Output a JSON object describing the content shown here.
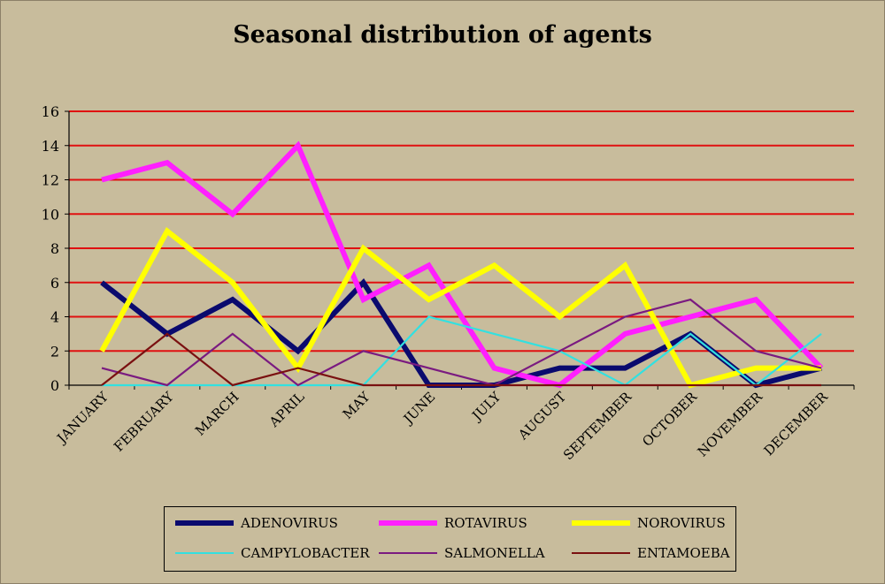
{
  "chart_data": {
    "type": "line",
    "title": "Seasonal distribution of agents",
    "xlabel": "",
    "ylabel": "",
    "categories": [
      "JANUARY",
      "FEBRUARY",
      "MARCH",
      "APRIL",
      "MAY",
      "JUNE",
      "JULY",
      "AUGUST",
      "SEPTEMBER",
      "OCTOBER",
      "NOVEMBER",
      "DECEMBER"
    ],
    "ylim": [
      0,
      16
    ],
    "yticks": [
      0,
      2,
      4,
      6,
      8,
      10,
      12,
      14,
      16
    ],
    "grid": true,
    "grid_color": "#e01010",
    "background_color": "#c8bc9c",
    "legend_position": "bottom",
    "series": [
      {
        "name": "ADENOVIRUS",
        "color": "#0a0a6e",
        "width": "thick",
        "values": [
          6,
          3,
          5,
          2,
          6,
          0,
          0,
          1,
          1,
          3,
          0,
          1
        ]
      },
      {
        "name": "ROTAVIRUS",
        "color": "#ff1fff",
        "width": "thick",
        "values": [
          12,
          13,
          10,
          14,
          5,
          7,
          1,
          0,
          3,
          4,
          5,
          1
        ]
      },
      {
        "name": "NOROVIRUS",
        "color": "#ffff00",
        "width": "thick",
        "values": [
          2,
          9,
          6,
          1,
          8,
          5,
          7,
          4,
          7,
          0,
          1,
          1
        ]
      },
      {
        "name": "CAMPYLOBACTER",
        "color": "#33e0e0",
        "width": "thin",
        "values": [
          0,
          0,
          0,
          0,
          0,
          4,
          3,
          2,
          0,
          3,
          0,
          3
        ]
      },
      {
        "name": "SALMONELLA",
        "color": "#7a1a80",
        "width": "thin",
        "values": [
          1,
          0,
          3,
          0,
          2,
          1,
          0,
          2,
          4,
          5,
          2,
          1
        ]
      },
      {
        "name": "ENTAMOEBA",
        "color": "#7a1010",
        "width": "thin",
        "values": [
          0,
          3,
          0,
          1,
          0,
          0,
          0,
          0,
          0,
          0,
          0,
          0
        ]
      }
    ]
  }
}
